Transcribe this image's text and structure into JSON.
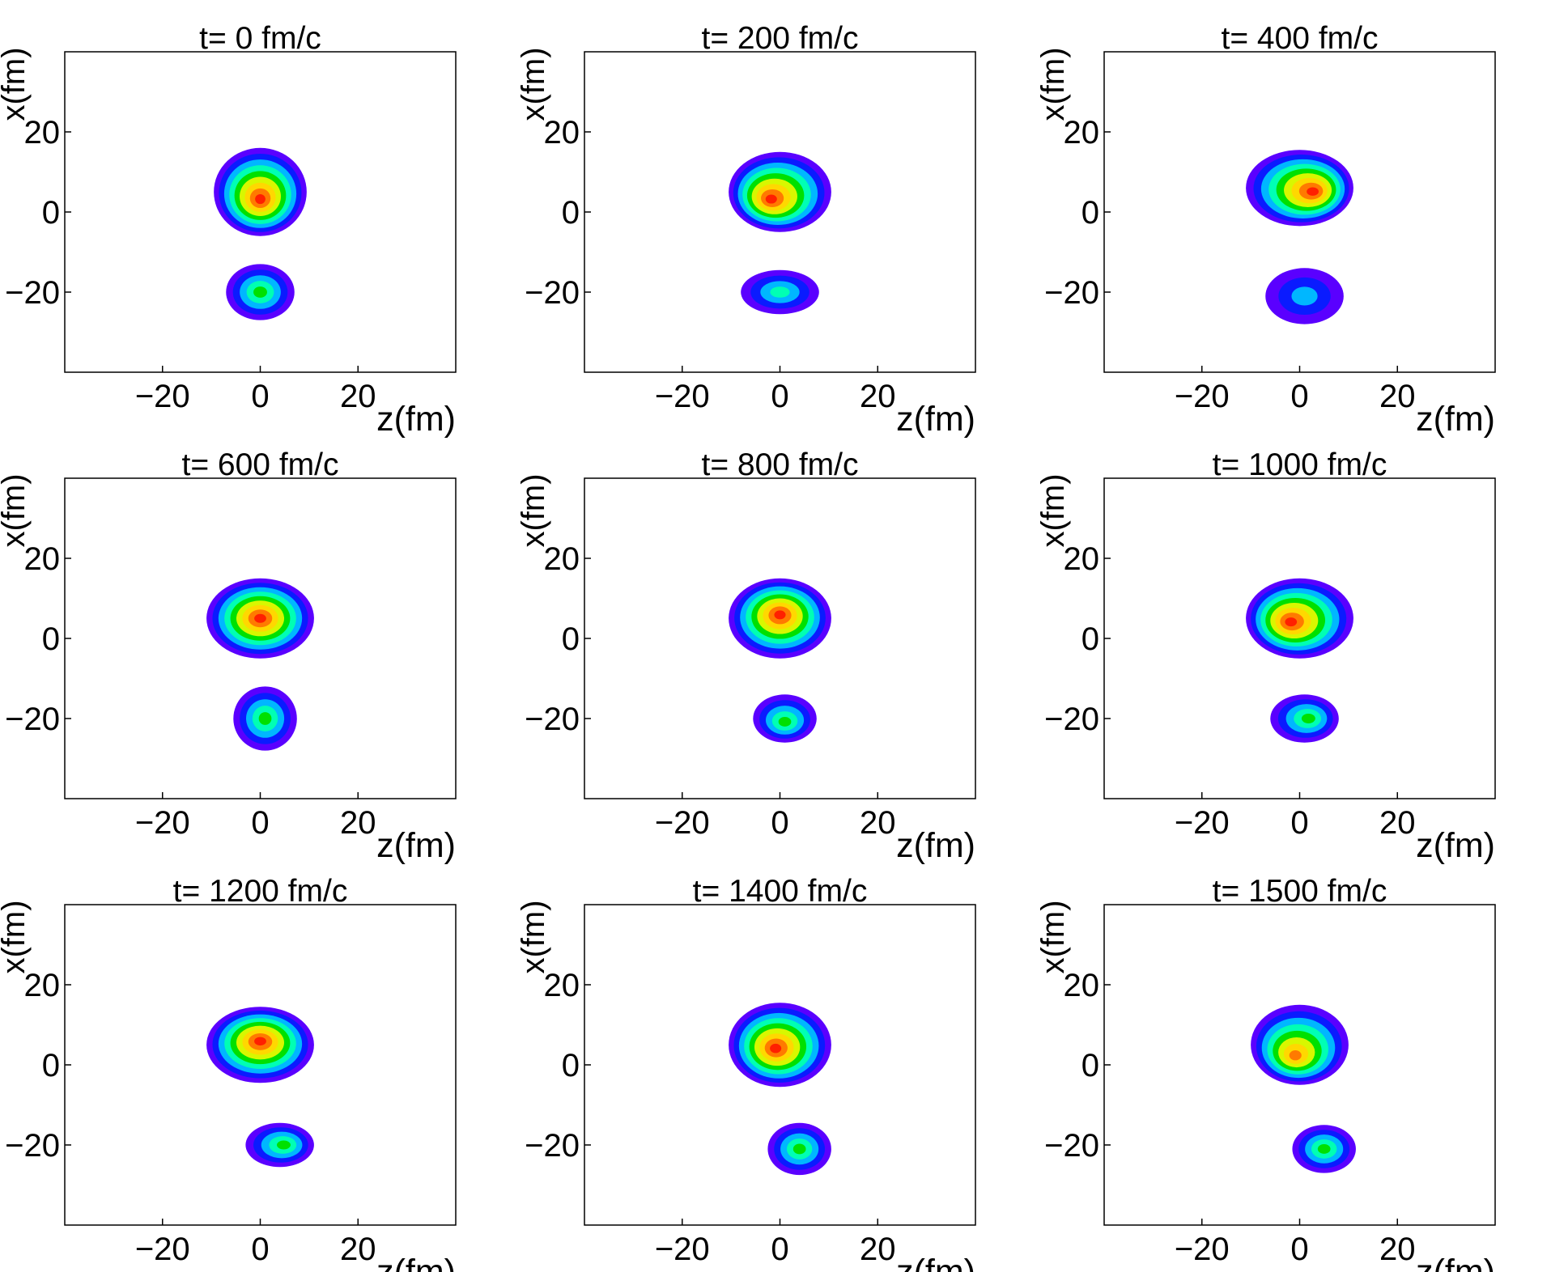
{
  "chart_data": {
    "type": "contour-grid",
    "description_units": "fm",
    "xlabel": "z(fm)",
    "ylabel": "x(fm)",
    "xlim": [
      -40,
      40
    ],
    "ylim": [
      -40,
      40
    ],
    "xticks": [
      -20,
      0,
      20
    ],
    "yticks": [
      -20,
      0,
      20
    ],
    "tick_labels": [
      "−20",
      "0",
      "20"
    ],
    "contour_colors": [
      "#5a00ff",
      "#0a1bff",
      "#00b7ff",
      "#00ffb4",
      "#00e000",
      "#d8f700",
      "#ffd800",
      "#ff7a00",
      "#ff2000",
      "#e40000"
    ],
    "panels": [
      {
        "title": "t= 0 fm/c",
        "blobs": [
          {
            "cx": 0,
            "cy": 5,
            "rx": 9.5,
            "ry": 11,
            "levels": 9,
            "peak": [
              0,
              3
            ]
          },
          {
            "cx": 0,
            "cy": -20,
            "rx": 7,
            "ry": 7,
            "levels": 5,
            "peak": [
              0,
              -20
            ]
          }
        ]
      },
      {
        "title": "t= 200 fm/c",
        "blobs": [
          {
            "cx": 0,
            "cy": 5,
            "rx": 10.5,
            "ry": 10,
            "levels": 9,
            "peak": [
              -2,
              3
            ]
          },
          {
            "cx": 0,
            "cy": -20,
            "rx": 8,
            "ry": 5.5,
            "levels": 4,
            "peak": [
              0,
              -20
            ]
          }
        ]
      },
      {
        "title": "t= 400 fm/c",
        "blobs": [
          {
            "cx": 0,
            "cy": 6,
            "rx": 11,
            "ry": 9.5,
            "levels": 9,
            "peak": [
              3,
              5
            ]
          },
          {
            "cx": 1,
            "cy": -21,
            "rx": 8,
            "ry": 7,
            "levels": 3,
            "peak": [
              1,
              -21
            ]
          }
        ]
      },
      {
        "title": "t= 600 fm/c",
        "blobs": [
          {
            "cx": 0,
            "cy": 5,
            "rx": 11,
            "ry": 10,
            "levels": 9,
            "peak": [
              0,
              5
            ]
          },
          {
            "cx": 1,
            "cy": -20,
            "rx": 6.5,
            "ry": 8,
            "levels": 5,
            "peak": [
              1,
              -20
            ]
          }
        ]
      },
      {
        "title": "t= 800 fm/c",
        "blobs": [
          {
            "cx": 0,
            "cy": 5,
            "rx": 10.5,
            "ry": 10,
            "levels": 9,
            "peak": [
              0,
              6
            ]
          },
          {
            "cx": 1,
            "cy": -20,
            "rx": 6.5,
            "ry": 6,
            "levels": 5,
            "peak": [
              1,
              -21
            ]
          }
        ]
      },
      {
        "title": "t= 1000 fm/c",
        "blobs": [
          {
            "cx": 0,
            "cy": 5,
            "rx": 11,
            "ry": 10,
            "levels": 9,
            "peak": [
              -2,
              4
            ]
          },
          {
            "cx": 1,
            "cy": -20,
            "rx": 7,
            "ry": 6,
            "levels": 5,
            "peak": [
              2,
              -20
            ]
          }
        ]
      },
      {
        "title": "t= 1200 fm/c",
        "blobs": [
          {
            "cx": 0,
            "cy": 5,
            "rx": 11,
            "ry": 9.5,
            "levels": 9,
            "peak": [
              0,
              6
            ]
          },
          {
            "cx": 4,
            "cy": -20,
            "rx": 7,
            "ry": 5.5,
            "levels": 5,
            "peak": [
              5,
              -20
            ]
          }
        ]
      },
      {
        "title": "t= 1400 fm/c",
        "blobs": [
          {
            "cx": 0,
            "cy": 5,
            "rx": 10.5,
            "ry": 10.5,
            "levels": 9,
            "peak": [
              -1,
              4
            ]
          },
          {
            "cx": 4,
            "cy": -21,
            "rx": 6.5,
            "ry": 6.5,
            "levels": 5,
            "peak": [
              4,
              -21
            ]
          }
        ]
      },
      {
        "title": "t= 1500 fm/c",
        "blobs": [
          {
            "cx": 0,
            "cy": 5,
            "rx": 10,
            "ry": 10,
            "levels": 8,
            "peak": [
              -1,
              2
            ]
          },
          {
            "cx": 5,
            "cy": -21,
            "rx": 6.5,
            "ry": 6,
            "levels": 5,
            "peak": [
              5,
              -21
            ]
          }
        ]
      }
    ]
  }
}
